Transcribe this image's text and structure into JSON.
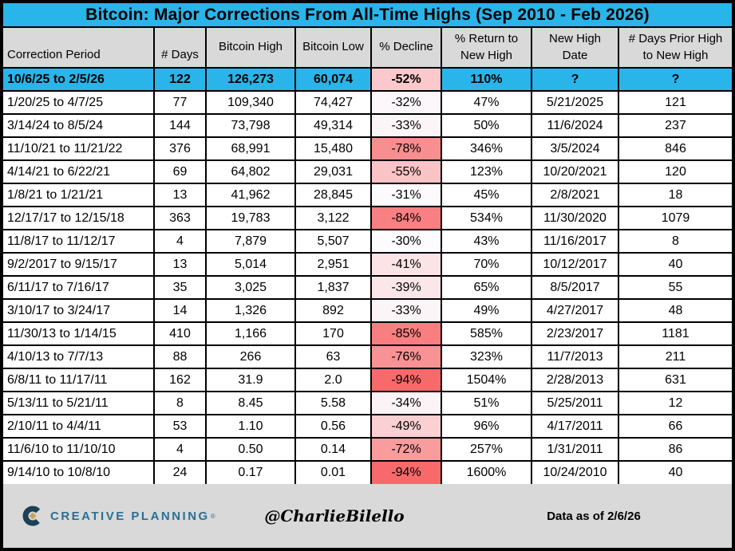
{
  "title": "Bitcoin: Major Corrections From All-Time Highs (Sep 2010 - Feb 2026)",
  "chart_data": {
    "type": "table",
    "title": "Bitcoin: Major Corrections From All-Time Highs (Sep 2010 - Feb 2026)",
    "columns": [
      "Correction Period",
      "# Days",
      "Bitcoin High",
      "Bitcoin Low",
      "% Decline",
      "% Return to\nNew High",
      "New High\nDate",
      "# Days Prior High\nto New High"
    ],
    "highlight_row": 0,
    "rows": [
      [
        "10/6/25 to 2/5/26",
        "122",
        "126,273",
        "60,074",
        "-52%",
        "110%",
        "?",
        "?"
      ],
      [
        "1/20/25 to 4/7/25",
        "77",
        "109,340",
        "74,427",
        "-32%",
        "47%",
        "5/21/2025",
        "121"
      ],
      [
        "3/14/24 to 8/5/24",
        "144",
        "73,798",
        "49,314",
        "-33%",
        "50%",
        "11/6/2024",
        "237"
      ],
      [
        "11/10/21 to 11/21/22",
        "376",
        "68,991",
        "15,480",
        "-78%",
        "346%",
        "3/5/2024",
        "846"
      ],
      [
        "4/14/21 to 6/22/21",
        "69",
        "64,802",
        "29,031",
        "-55%",
        "123%",
        "10/20/2021",
        "120"
      ],
      [
        "1/8/21 to 1/21/21",
        "13",
        "41,962",
        "28,845",
        "-31%",
        "45%",
        "2/8/2021",
        "18"
      ],
      [
        "12/17/17 to 12/15/18",
        "363",
        "19,783",
        "3,122",
        "-84%",
        "534%",
        "11/30/2020",
        "1079"
      ],
      [
        "11/8/17 to 11/12/17",
        "4",
        "7,879",
        "5,507",
        "-30%",
        "43%",
        "11/16/2017",
        "8"
      ],
      [
        "9/2/2017 to 9/15/17",
        "13",
        "5,014",
        "2,951",
        "-41%",
        "70%",
        "10/12/2017",
        "40"
      ],
      [
        "6/11/17 to 7/16/17",
        "35",
        "3,025",
        "1,837",
        "-39%",
        "65%",
        "8/5/2017",
        "55"
      ],
      [
        "3/10/17 to 3/24/17",
        "14",
        "1,326",
        "892",
        "-33%",
        "49%",
        "4/27/2017",
        "48"
      ],
      [
        "11/30/13 to 1/14/15",
        "410",
        "1,166",
        "170",
        "-85%",
        "585%",
        "2/23/2017",
        "1181"
      ],
      [
        "4/10/13 to 7/7/13",
        "88",
        "266",
        "63",
        "-76%",
        "323%",
        "11/7/2013",
        "211"
      ],
      [
        "6/8/11 to 11/17/11",
        "162",
        "31.9",
        "2.0",
        "-94%",
        "1504%",
        "2/28/2013",
        "631"
      ],
      [
        "5/13/11 to 5/21/11",
        "8",
        "8.45",
        "5.58",
        "-34%",
        "51%",
        "5/25/2011",
        "12"
      ],
      [
        "2/10/11 to 4/4/11",
        "53",
        "1.10",
        "0.56",
        "-49%",
        "96%",
        "4/17/2011",
        "66"
      ],
      [
        "11/6/10 to 11/10/10",
        "4",
        "0.50",
        "0.14",
        "-72%",
        "257%",
        "1/31/2011",
        "86"
      ],
      [
        "9/14/10 to 10/8/10",
        "24",
        "0.17",
        "0.01",
        "-94%",
        "1600%",
        "10/24/2010",
        "40"
      ]
    ]
  },
  "footer": {
    "brand": "CREATIVE PLANNING",
    "brand_mark": "®",
    "handle": "@CharlieBilello",
    "data_as_of": "Data as of 2/6/26"
  },
  "colors": {
    "accent_cyan": "#29B5E9",
    "header_gray": "#D9D9D9",
    "footer_gray": "#D9D9D9",
    "grid_black": "#000000",
    "brand_teal": "#2A6F93",
    "brand_navy": "#1C4055",
    "brand_gold": "#C9A45C",
    "decline_scale": {
      "min_color": "#FCFCFF",
      "max_color": "#F8696B",
      "min_abs": 30,
      "max_abs": 94
    }
  }
}
